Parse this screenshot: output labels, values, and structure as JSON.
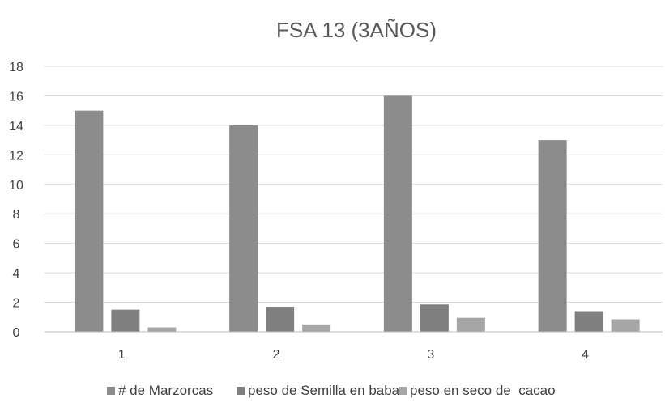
{
  "chart_data": {
    "type": "bar",
    "title": "FSA 13 (3AÑOS)",
    "categories": [
      "1",
      "2",
      "3",
      "4"
    ],
    "series": [
      {
        "name": "# de Marzorcas",
        "values": [
          15,
          14,
          16,
          13
        ],
        "color": "#8c8c8c"
      },
      {
        "name": "peso de Semilla en baba",
        "values": [
          1.5,
          1.7,
          1.85,
          1.4
        ],
        "color": "#7f7f7f"
      },
      {
        "name": "peso en seco de  cacao",
        "values": [
          0.3,
          0.5,
          0.95,
          0.85
        ],
        "color": "#a6a6a6"
      }
    ],
    "ylim": [
      0,
      18
    ],
    "yticks": [
      0,
      2,
      4,
      6,
      8,
      10,
      12,
      14,
      16,
      18
    ],
    "grid": true,
    "legend_position": "bottom"
  }
}
